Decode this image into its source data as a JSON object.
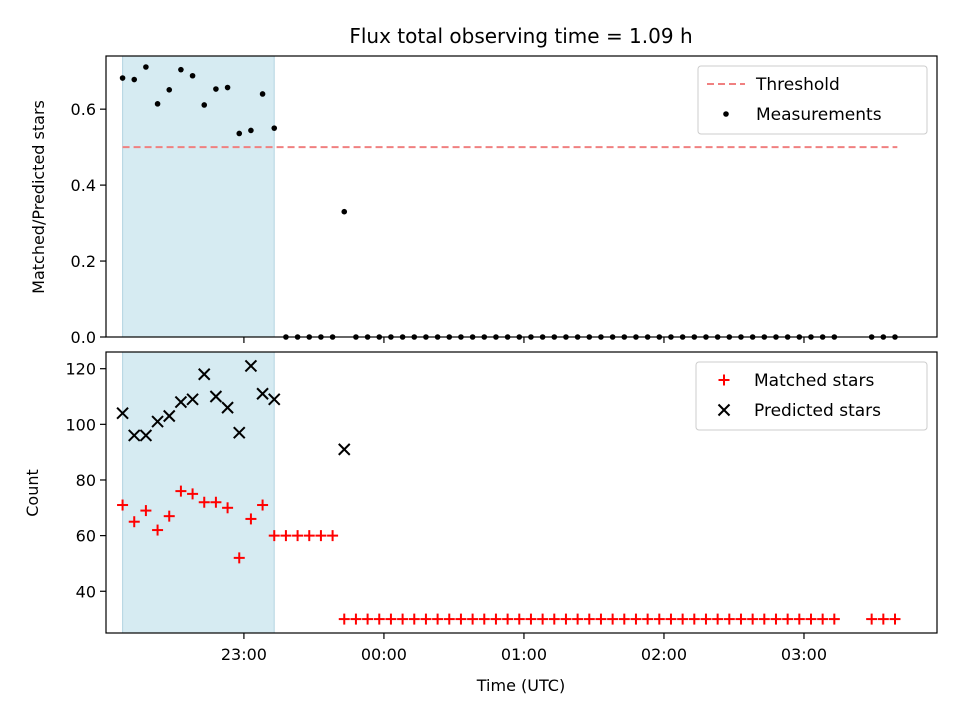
{
  "chart_data": {
    "title": "Flux total observing time = 1.09 h",
    "xlabel": "Time (UTC)",
    "x_ticks": [
      "23:00",
      "00:00",
      "01:00",
      "02:00",
      "03:00"
    ],
    "shaded_span": {
      "start": "22:08",
      "end": "23:13",
      "color": "#add8e6"
    },
    "panels": [
      {
        "type": "scatter",
        "ylabel": "Matched/Predicted stars",
        "ylim": [
          0,
          0.74
        ],
        "y_ticks": [
          "0.0",
          "0.2",
          "0.4",
          "0.6"
        ],
        "legend": {
          "position": "upper-right"
        },
        "threshold": {
          "name": "Threshold",
          "value": 0.5,
          "x_start": "22:08",
          "x_end": "03:40",
          "color": "#f08080"
        },
        "series": [
          {
            "name": "Measurements",
            "marker": "dot",
            "color": "#000000",
            "points": [
              [
                "22:08",
                0.682
              ],
              [
                "22:13",
                0.678
              ],
              [
                "22:18",
                0.711
              ],
              [
                "22:23",
                0.614
              ],
              [
                "22:28",
                0.651
              ],
              [
                "22:33",
                0.704
              ],
              [
                "22:38",
                0.688
              ],
              [
                "22:43",
                0.611
              ],
              [
                "22:48",
                0.653
              ],
              [
                "22:53",
                0.657
              ],
              [
                "22:58",
                0.536
              ],
              [
                "23:03",
                0.544
              ],
              [
                "23:08",
                0.64
              ],
              [
                "23:13",
                0.55
              ],
              [
                "23:18",
                0
              ],
              [
                "23:23",
                0
              ],
              [
                "23:28",
                0
              ],
              [
                "23:33",
                0
              ],
              [
                "23:38",
                0
              ],
              [
                "23:43",
                0.33
              ],
              [
                "23:48",
                0
              ],
              [
                "23:53",
                0
              ],
              [
                "23:58",
                0
              ],
              [
                "00:03",
                0
              ],
              [
                "00:08",
                0
              ],
              [
                "00:13",
                0
              ],
              [
                "00:18",
                0
              ],
              [
                "00:23",
                0
              ],
              [
                "00:28",
                0
              ],
              [
                "00:33",
                0
              ],
              [
                "00:38",
                0
              ],
              [
                "00:43",
                0
              ],
              [
                "00:48",
                0
              ],
              [
                "00:53",
                0
              ],
              [
                "00:58",
                0
              ],
              [
                "01:03",
                0
              ],
              [
                "01:08",
                0
              ],
              [
                "01:13",
                0
              ],
              [
                "01:18",
                0
              ],
              [
                "01:23",
                0
              ],
              [
                "01:28",
                0
              ],
              [
                "01:33",
                0
              ],
              [
                "01:38",
                0
              ],
              [
                "01:43",
                0
              ],
              [
                "01:48",
                0
              ],
              [
                "01:53",
                0
              ],
              [
                "01:58",
                0
              ],
              [
                "02:03",
                0
              ],
              [
                "02:08",
                0
              ],
              [
                "02:13",
                0
              ],
              [
                "02:18",
                0
              ],
              [
                "02:23",
                0
              ],
              [
                "02:28",
                0
              ],
              [
                "02:33",
                0
              ],
              [
                "02:38",
                0
              ],
              [
                "02:43",
                0
              ],
              [
                "02:48",
                0
              ],
              [
                "02:53",
                0
              ],
              [
                "02:58",
                0
              ],
              [
                "03:03",
                0
              ],
              [
                "03:08",
                0
              ],
              [
                "03:13",
                0
              ],
              [
                "03:29",
                0
              ],
              [
                "03:34",
                0
              ],
              [
                "03:39",
                0
              ]
            ]
          }
        ]
      },
      {
        "type": "scatter",
        "ylabel": "Count",
        "ylim": [
          25,
          126
        ],
        "y_ticks": [
          "40",
          "60",
          "80",
          "100",
          "120"
        ],
        "legend": {
          "position": "upper-right"
        },
        "series": [
          {
            "name": "Matched stars",
            "marker": "plus",
            "color": "#ff0000",
            "points": [
              [
                "22:08",
                71
              ],
              [
                "22:13",
                65
              ],
              [
                "22:18",
                69
              ],
              [
                "22:23",
                62
              ],
              [
                "22:28",
                67
              ],
              [
                "22:33",
                76
              ],
              [
                "22:38",
                75
              ],
              [
                "22:43",
                72
              ],
              [
                "22:48",
                72
              ],
              [
                "22:53",
                70
              ],
              [
                "22:58",
                52
              ],
              [
                "23:03",
                66
              ],
              [
                "23:08",
                71
              ],
              [
                "23:13",
                60
              ],
              [
                "23:18",
                60
              ],
              [
                "23:23",
                60
              ],
              [
                "23:28",
                60
              ],
              [
                "23:33",
                60
              ],
              [
                "23:38",
                60
              ],
              [
                "23:43",
                30
              ],
              [
                "23:48",
                30
              ],
              [
                "23:53",
                30
              ],
              [
                "23:58",
                30
              ],
              [
                "00:03",
                30
              ],
              [
                "00:08",
                30
              ],
              [
                "00:13",
                30
              ],
              [
                "00:18",
                30
              ],
              [
                "00:23",
                30
              ],
              [
                "00:28",
                30
              ],
              [
                "00:33",
                30
              ],
              [
                "00:38",
                30
              ],
              [
                "00:43",
                30
              ],
              [
                "00:48",
                30
              ],
              [
                "00:53",
                30
              ],
              [
                "00:58",
                30
              ],
              [
                "01:03",
                30
              ],
              [
                "01:08",
                30
              ],
              [
                "01:13",
                30
              ],
              [
                "01:18",
                30
              ],
              [
                "01:23",
                30
              ],
              [
                "01:28",
                30
              ],
              [
                "01:33",
                30
              ],
              [
                "01:38",
                30
              ],
              [
                "01:43",
                30
              ],
              [
                "01:48",
                30
              ],
              [
                "01:53",
                30
              ],
              [
                "01:58",
                30
              ],
              [
                "02:03",
                30
              ],
              [
                "02:08",
                30
              ],
              [
                "02:13",
                30
              ],
              [
                "02:18",
                30
              ],
              [
                "02:23",
                30
              ],
              [
                "02:28",
                30
              ],
              [
                "02:33",
                30
              ],
              [
                "02:38",
                30
              ],
              [
                "02:43",
                30
              ],
              [
                "02:48",
                30
              ],
              [
                "02:53",
                30
              ],
              [
                "02:58",
                30
              ],
              [
                "03:03",
                30
              ],
              [
                "03:08",
                30
              ],
              [
                "03:13",
                30
              ],
              [
                "03:29",
                30
              ],
              [
                "03:34",
                30
              ],
              [
                "03:39",
                30
              ]
            ]
          },
          {
            "name": "Predicted stars",
            "marker": "x",
            "color": "#000000",
            "points": [
              [
                "22:08",
                104
              ],
              [
                "22:13",
                96
              ],
              [
                "22:18",
                96
              ],
              [
                "22:23",
                101
              ],
              [
                "22:28",
                103
              ],
              [
                "22:33",
                108
              ],
              [
                "22:38",
                109
              ],
              [
                "22:43",
                118
              ],
              [
                "22:48",
                110
              ],
              [
                "22:53",
                106
              ],
              [
                "22:58",
                97
              ],
              [
                "23:03",
                121
              ],
              [
                "23:08",
                111
              ],
              [
                "23:13",
                109
              ],
              [
                "23:43",
                91
              ]
            ]
          }
        ]
      }
    ]
  }
}
